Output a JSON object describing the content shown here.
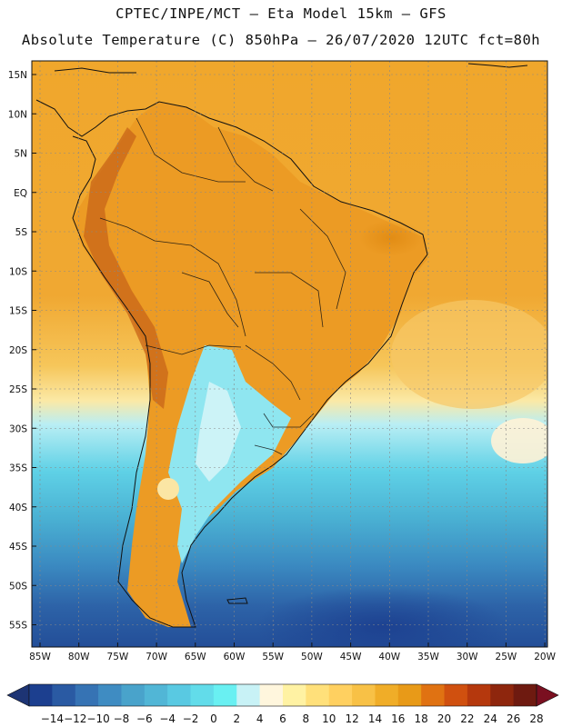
{
  "header": {
    "line1": "CPTEC/INPE/MCT –  Eta Model 15km – GFS",
    "line2": "Absolute Temperature (C) 850hPa – 26/07/2020 12UTC fct=80h"
  },
  "map": {
    "lat_labels": [
      "15N",
      "10N",
      "5N",
      "EQ",
      "5S",
      "10S",
      "15S",
      "20S",
      "25S",
      "30S",
      "35S",
      "40S",
      "45S",
      "50S",
      "55S"
    ],
    "lon_labels": [
      "85W",
      "80W",
      "75W",
      "70W",
      "65W",
      "60W",
      "55W",
      "50W",
      "45W",
      "40W",
      "35W",
      "30W",
      "25W",
      "20W"
    ]
  },
  "colorbar": {
    "labels": [
      "-14",
      "-12",
      "-10",
      "-8",
      "-6",
      "-4",
      "-2",
      "0",
      "2",
      "4",
      "6",
      "8",
      "10",
      "12",
      "14",
      "16",
      "18",
      "20",
      "22",
      "24",
      "26",
      "28"
    ],
    "colors": [
      "#1c3f8f",
      "#2a5aa3",
      "#3673b4",
      "#3f8cc2",
      "#49a3cb",
      "#51b6d6",
      "#59c9e2",
      "#62dcea",
      "#69f0f2",
      "#c8f2f6",
      "#fff6dd",
      "#fff2a3",
      "#ffe07a",
      "#ffd060",
      "#f8c146",
      "#f0ad28",
      "#e89a18",
      "#e07212",
      "#d0500f",
      "#b5380d",
      "#8e260d",
      "#6e1a10"
    ],
    "low_arrow": "#1d3474",
    "high_arrow": "#7a0f20"
  }
}
